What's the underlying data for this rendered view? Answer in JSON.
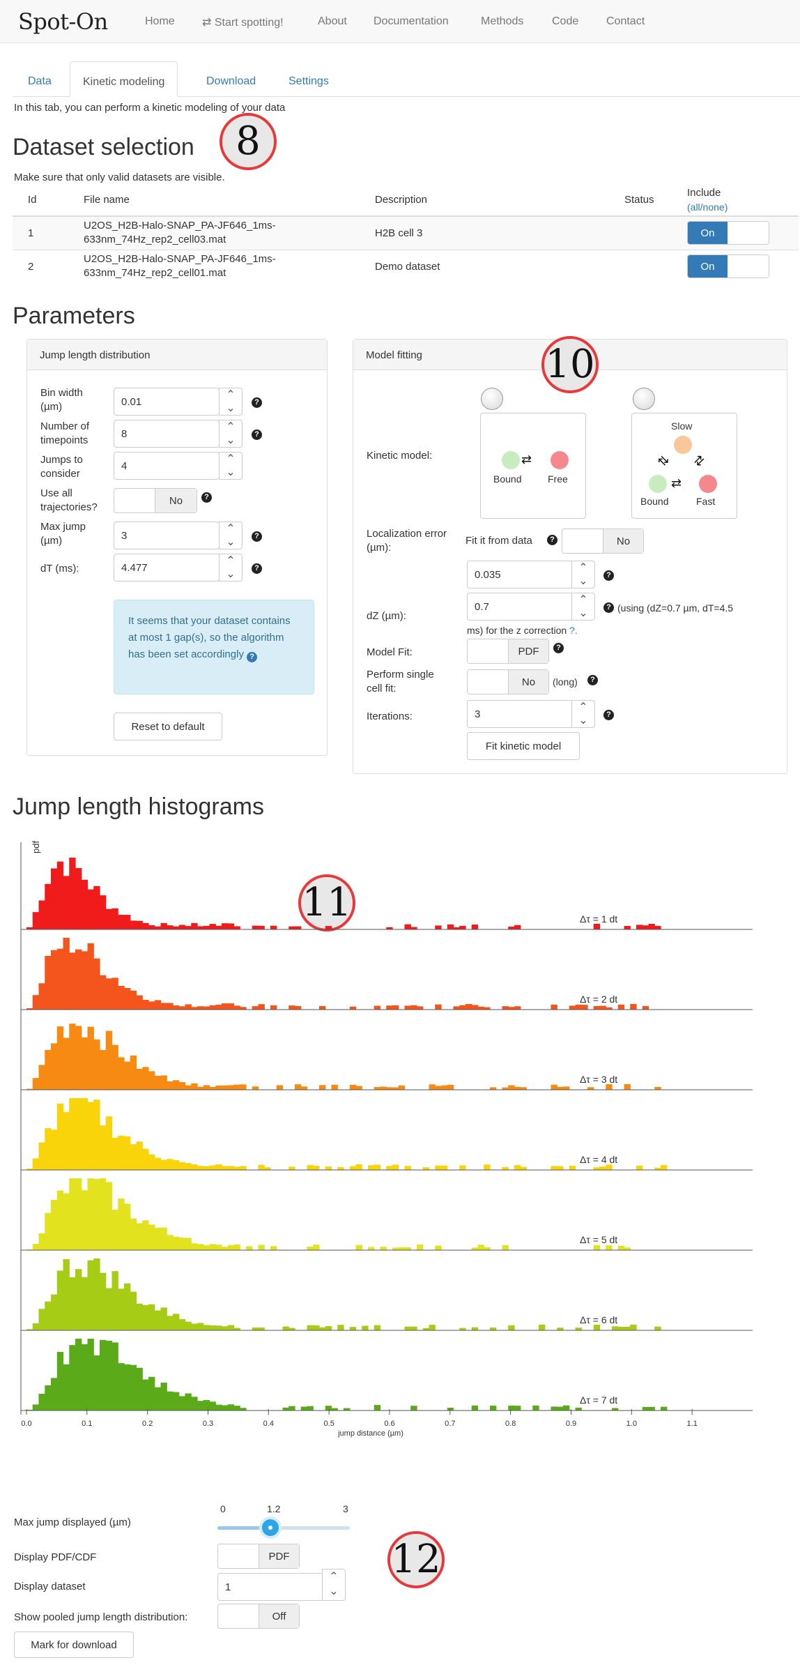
{
  "nav": {
    "brand": "Spot-On",
    "items": [
      "Home",
      "⇄ Start spotting!",
      "About",
      "Documentation",
      "Methods",
      "Code",
      "Contact"
    ]
  },
  "tabs": [
    "Data",
    "Kinetic modeling",
    "Download",
    "Settings"
  ],
  "intro": "In this tab, you can perform a kinetic modeling of your data",
  "dataset": {
    "title": "Dataset selection",
    "note": "Make sure that only valid datasets are visible.",
    "headers": {
      "id": "Id",
      "file": "File name",
      "desc": "Description",
      "status": "Status",
      "include": "Include",
      "allnone": "(all/none)"
    },
    "rows": [
      {
        "id": "1",
        "file1": "U2OS_H2B-Halo-SNAP_PA-JF646_1ms-",
        "file2": "633nm_74Hz_rep2_cell03.mat",
        "desc": "H2B cell 3",
        "include": "On"
      },
      {
        "id": "2",
        "file1": "U2OS_H2B-Halo-SNAP_PA-JF646_1ms-",
        "file2": "633nm_74Hz_rep2_cell01.mat",
        "desc": "Demo dataset",
        "include": "On"
      }
    ]
  },
  "badges": [
    "8",
    "10",
    "11",
    "12"
  ],
  "parameters": {
    "title": "Parameters",
    "jump": {
      "title": "Jump length distribution",
      "bin_width_label1": "Bin width",
      "bin_width_label2": "(µm)",
      "bin_width": "0.01",
      "timepoints_label1": "Number of",
      "timepoints_label2": "timepoints",
      "timepoints": "8",
      "jumps_label1": "Jumps to",
      "jumps_label2": "consider",
      "jumps": "4",
      "useall_label1": "Use all",
      "useall_label2": "trajectories?",
      "useall": "No",
      "maxjump_label1": "Max jump",
      "maxjump_label2": "(µm)",
      "maxjump": "3",
      "dt_label": "dT (ms):",
      "dt": "4.477",
      "info": "It seems that your dataset contains at most 1 gap(s), so the algorithm has been set accordingly",
      "reset": "Reset to default"
    },
    "model": {
      "title": "Model fitting",
      "kinetic_label": "Kinetic model:",
      "two_state": {
        "bound": "Bound",
        "free": "Free"
      },
      "three_state": {
        "slow": "Slow",
        "bound": "Bound",
        "fast": "Fast"
      },
      "locerr_label1": "Localization error",
      "locerr_label2": "(µm):",
      "fit_from_data": "Fit it from data",
      "fit_from_data_val": "No",
      "locerr": "0.035",
      "dz_label": "dZ (µm):",
      "dz": "0.7",
      "dz_note1": "(using (dZ=0.7 µm, dT=4.5",
      "dz_note2": "ms) for the z correction",
      "dz_q": "?.",
      "modelfit_label": "Model Fit:",
      "modelfit": "PDF",
      "single_label1": "Perform single",
      "single_label2": "cell fit:",
      "single": "No",
      "single_note": "(long)",
      "iter_label": "Iterations:",
      "iter": "3",
      "fit_button": "Fit kinetic model"
    }
  },
  "histograms": {
    "title": "Jump length histograms",
    "ylabel_glyph": "pdf"
  },
  "chart_data": {
    "type": "bar",
    "title": "",
    "xlabel": "jump distance (µm)",
    "xlim": [
      0,
      1.2
    ],
    "xticks": [
      "0.0",
      "0.1",
      "0.2",
      "0.3",
      "0.4",
      "0.5",
      "0.6",
      "0.7",
      "0.8",
      "0.9",
      "1.0",
      "1.1"
    ],
    "bin_width": 0.01,
    "series": [
      {
        "name": "Δτ = 1 dt",
        "color": "#f01b1b",
        "peak": 0.06,
        "peak_height": 0.95,
        "spread": 0.045
      },
      {
        "name": "Δτ = 2 dt",
        "color": "#f3551c",
        "peak": 0.07,
        "peak_height": 0.95,
        "spread": 0.06
      },
      {
        "name": "Δτ = 3 dt",
        "color": "#f78a12",
        "peak": 0.08,
        "peak_height": 0.95,
        "spread": 0.07
      },
      {
        "name": "Δτ = 4 dt",
        "color": "#f9d40a",
        "peak": 0.08,
        "peak_height": 0.95,
        "spread": 0.08
      },
      {
        "name": "Δτ = 5 dt",
        "color": "#e2e21e",
        "peak": 0.09,
        "peak_height": 0.95,
        "spread": 0.09
      },
      {
        "name": "Δτ = 6 dt",
        "color": "#a6cc16",
        "peak": 0.09,
        "peak_height": 0.95,
        "spread": 0.1
      },
      {
        "name": "Δτ = 7 dt",
        "color": "#5aaa1a",
        "peak": 0.1,
        "peak_height": 0.95,
        "spread": 0.11
      }
    ]
  },
  "controls": {
    "maxjump_label": "Max jump displayed (µm)",
    "slider_min": "0",
    "slider_val": "1.2",
    "slider_max": "3",
    "pdfcdf_label": "Display PDF/CDF",
    "pdfcdf": "PDF",
    "display_dataset_label": "Display dataset",
    "display_dataset": "1",
    "pooled_label": "Show pooled jump length distribution:",
    "pooled": "Off",
    "mark_button": "Mark for download"
  }
}
